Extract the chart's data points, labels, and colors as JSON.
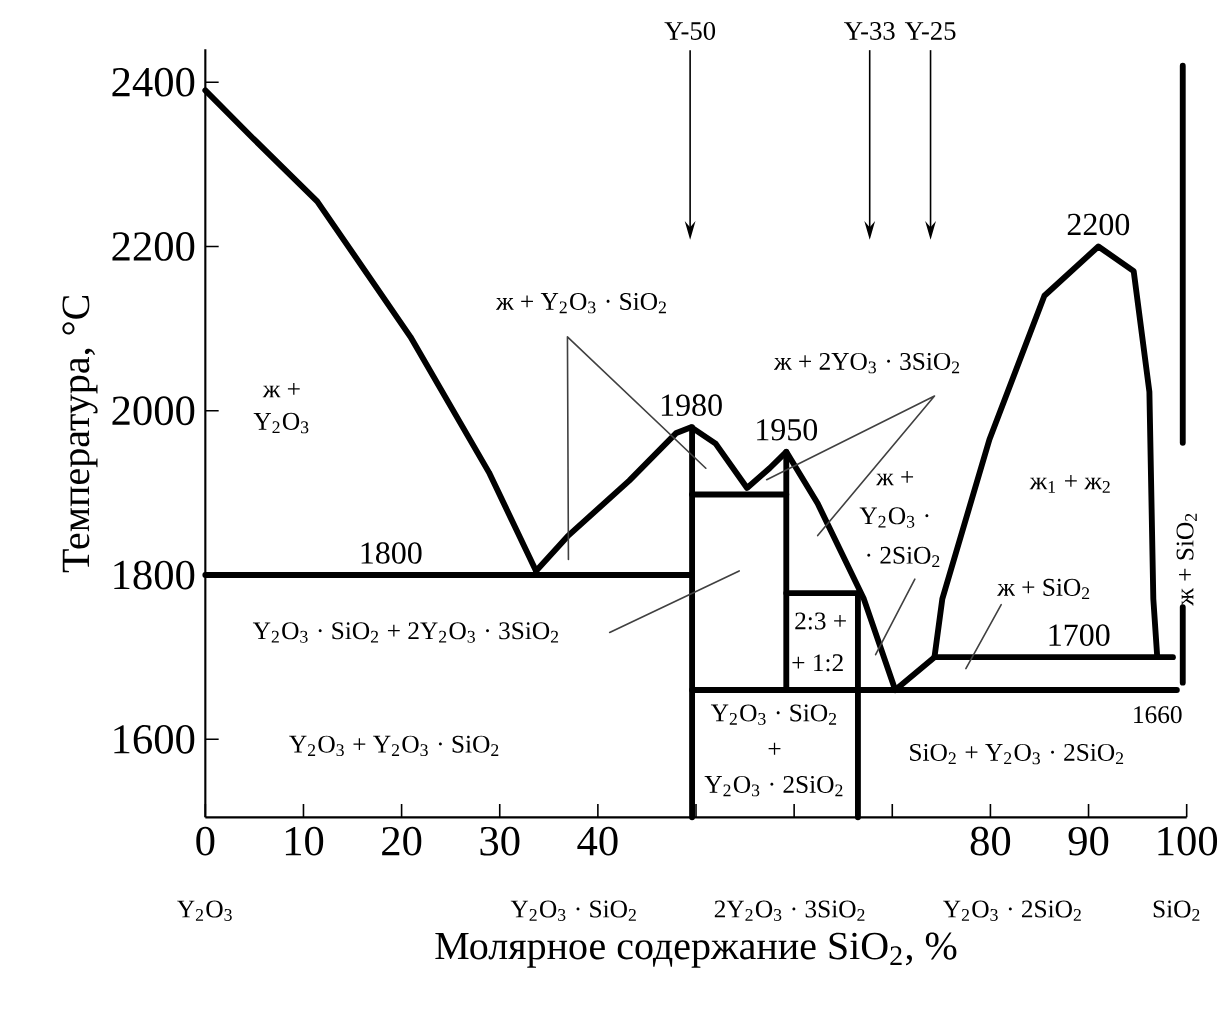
{
  "chart_data": {
    "type": "line",
    "xlabel": "Молярное содержание SiO$_{2}$, %",
    "ylabel": "Температура, °C",
    "xlim": [
      0,
      100
    ],
    "ylim": [
      1505,
      2440
    ],
    "xticks": [
      0,
      10,
      20,
      30,
      40,
      {
        "value": 50,
        "label": null
      },
      {
        "value": 60,
        "label": null
      },
      {
        "value": 70,
        "label": null
      },
      80,
      90,
      100
    ],
    "yticks": [
      1600,
      1800,
      2000,
      2200,
      2400
    ],
    "series": [
      {
        "color": "#000000",
        "x": [
          0,
          5,
          11.4,
          20.9,
          28.9,
          33.7
        ],
        "values": [
          2390,
          2330,
          2255,
          2090,
          1925,
          1805
        ]
      },
      {
        "color": "#000000",
        "x": [
          33.7,
          36.9,
          43.2,
          48,
          49.5,
          52,
          55.2,
          57.5,
          59.2,
          62.4,
          67.1,
          70.3
        ],
        "values": [
          1805,
          1847,
          1915,
          1973,
          1980,
          1960,
          1906,
          1930,
          1950,
          1887,
          1771,
          1660
        ]
      },
      {
        "color": "#000000",
        "x": [
          0,
          49.6
        ],
        "values": [
          1800,
          1800
        ]
      },
      {
        "color": "#000000",
        "x": [
          49.6,
          49.6
        ],
        "values": [
          1980,
          1505
        ]
      },
      {
        "color": "#000000",
        "x": [
          49.6,
          59.2
        ],
        "values": [
          1898,
          1898
        ]
      },
      {
        "color": "#000000",
        "x": [
          59.2,
          59.2
        ],
        "values": [
          1950,
          1660
        ]
      },
      {
        "color": "#000000",
        "x": [
          59.2,
          66.5
        ],
        "values": [
          1778,
          1778
        ]
      },
      {
        "color": "#000000",
        "x": [
          66.5,
          66.5
        ],
        "values": [
          1778,
          1505
        ]
      },
      {
        "color": "#000000",
        "x": [
          49.6,
          99
        ],
        "values": [
          1660,
          1660
        ]
      },
      {
        "color": "#000000",
        "x": [
          70.3,
          74.3
        ],
        "values": [
          1660,
          1700
        ]
      },
      {
        "color": "#000000",
        "x": [
          74.3,
          98.6
        ],
        "values": [
          1700,
          1700
        ]
      },
      {
        "color": "#000000",
        "x": [
          74.3,
          75.1,
          79.9,
          85.5,
          91,
          94.6,
          96.2,
          96.6,
          97
        ],
        "values": [
          1700,
          1771,
          1965,
          2140,
          2200,
          2170,
          2023,
          1771,
          1700
        ]
      },
      {
        "color": "#000000",
        "x": [
          99.6,
          99.6
        ],
        "values": [
          2420,
          1961
        ]
      },
      {
        "color": "#000000",
        "x": [
          99.6,
          99.6
        ],
        "values": [
          1761,
          1669
        ]
      },
      {
        "color": "#404040",
        "x": [
          37,
          36.9,
          51
        ],
        "values": [
          1819,
          2090,
          1930
        ]
      },
      {
        "color": "#404040",
        "x": [
          57.2,
          74.3,
          62.4
        ],
        "values": [
          1916,
          2018,
          1848
        ]
      },
      {
        "color": "#404040",
        "x": [
          72.3,
          68.3
        ],
        "values": [
          1795,
          1703
        ]
      },
      {
        "color": "#404040",
        "x": [
          41.2,
          54.4
        ],
        "values": [
          1730,
          1805
        ]
      },
      {
        "color": "#404040",
        "x": [
          81.1,
          77.5
        ],
        "values": [
          1764,
          1686
        ]
      }
    ],
    "ref_lines": [
      {
        "axis": "x",
        "value": 49.4,
        "label": "Y-50"
      },
      {
        "axis": "x",
        "value": 67.7,
        "label": "Y-33"
      },
      {
        "axis": "x",
        "value": 73.9,
        "label": "Y-25"
      }
    ],
    "annotations": [
      {
        "text": "1800",
        "x": 18.9,
        "y": 1800
      },
      {
        "text": "1980",
        "x": 49.5,
        "y": 1980
      },
      {
        "text": "1950",
        "x": 59.2,
        "y": 1950
      },
      {
        "text": "2200",
        "x": 91,
        "y": 2200
      },
      {
        "text": "1700",
        "x": 89,
        "y": 1700
      },
      "1660",
      "ж +",
      "Y$_{2}$O$_{3}$",
      "ж + Y$_{2}$O$_{3}$ · SiO$_{2}$",
      "ж + 2YO$_{3}$ · 3SiO$_{2}$",
      "ж +",
      "Y$_{2}$O$_{3}$ ·",
      "· 2SiO$_{2}$",
      "ж$_{1}$ + ж$_{2}$",
      "ж + SiO$_{2}$",
      "Y$_{2}$O$_{3}$ · SiO$_{2}$ + 2Y$_{2}$O$_{3}$ · 3SiO$_{2}$",
      "2:3 +",
      "+ 1:2",
      "Y$_{2}$O$_{3}$ + Y$_{2}$O$_{3}$ · SiO$_{2}$",
      "Y$_{2}$O$_{3}$ · SiO$_{2}$",
      "+",
      "Y$_{2}$O$_{3}$ · 2SiO$_{2}$",
      "SiO$_{2}$ + Y$_{2}$O$_{3}$ · 2SiO$_{2}$",
      "ж + SiO$_{2}$",
      "Y$_{2}$O$_{3}$",
      "Y$_{2}$O$_{3}$ · SiO$_{2}$",
      "2Y$_{2}$O$_{3}$ · 3SiO$_{2}$",
      "Y$_{2}$O$_{3}$ · 2SiO$_{2}$",
      "SiO$_{2}$"
    ]
  }
}
